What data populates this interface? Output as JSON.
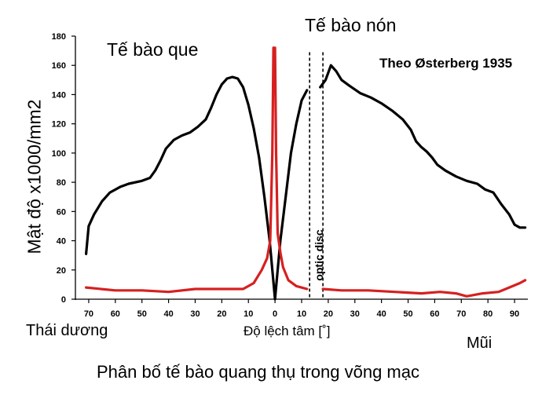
{
  "labels": {
    "rods": "Tế bào que",
    "cones": "Tế bào nón",
    "source": "Theo Østerberg 1935",
    "temporal": "Thái dương",
    "nasal": "Mũi",
    "xlabel": "Độ lệch tâm [˚]",
    "ylabel": "Mật độ x1000/mm2",
    "caption": "Phân bố tế bào quang thụ trong võng mạc",
    "optic_disc": "optic disc"
  },
  "chart_data": {
    "type": "line",
    "xlabel": "Độ lệch tâm [˚]",
    "ylabel": "Mật độ x1000/mm2",
    "xlim": [
      -75,
      95
    ],
    "ylim": [
      0,
      180
    ],
    "x_reversed_left_side": true,
    "x_ticks": [
      -70,
      -60,
      -50,
      -40,
      -30,
      -20,
      -10,
      0,
      10,
      20,
      30,
      40,
      50,
      60,
      70,
      80,
      90
    ],
    "x_tick_labels": [
      "70",
      "60",
      "50",
      "40",
      "30",
      "20",
      "10",
      "0",
      "10",
      "20",
      "30",
      "40",
      "50",
      "60",
      "70",
      "80",
      "90"
    ],
    "y_ticks": [
      0,
      20,
      40,
      60,
      80,
      100,
      120,
      140,
      160,
      180
    ],
    "optic_disc": [
      13,
      18
    ],
    "series": [
      {
        "name": "Tế bào que",
        "color": "#000000",
        "segments": [
          [
            [
              -71,
              31
            ],
            [
              -70,
              50
            ],
            [
              -68,
              58
            ],
            [
              -65,
              67
            ],
            [
              -62,
              73
            ],
            [
              -58,
              77
            ],
            [
              -55,
              79
            ],
            [
              -50,
              81
            ],
            [
              -47,
              83
            ],
            [
              -45,
              88
            ],
            [
              -43,
              95
            ],
            [
              -41,
              103
            ],
            [
              -38,
              109
            ],
            [
              -35,
              112
            ],
            [
              -32,
              114
            ],
            [
              -29,
              118
            ],
            [
              -26,
              123
            ],
            [
              -24,
              131
            ],
            [
              -22,
              140
            ],
            [
              -20,
              147
            ],
            [
              -18,
              151
            ],
            [
              -16,
              152
            ],
            [
              -14,
              151
            ],
            [
              -12,
              145
            ],
            [
              -10,
              133
            ],
            [
              -8,
              117
            ],
            [
              -6,
              97
            ],
            [
              -4,
              70
            ],
            [
              -2,
              40
            ],
            [
              0,
              0
            ],
            [
              2,
              40
            ],
            [
              4,
              70
            ],
            [
              6,
              100
            ],
            [
              8,
              120
            ],
            [
              10,
              136
            ],
            [
              12,
              143
            ]
          ],
          [
            [
              17,
              145
            ],
            [
              19,
              150
            ],
            [
              21,
              160
            ],
            [
              23,
              156
            ],
            [
              25,
              150
            ],
            [
              28,
              146
            ],
            [
              32,
              141
            ],
            [
              36,
              138
            ],
            [
              40,
              134
            ],
            [
              44,
              129
            ],
            [
              48,
              123
            ],
            [
              51,
              116
            ],
            [
              53,
              108
            ],
            [
              55,
              104
            ],
            [
              57,
              101
            ],
            [
              59,
              97
            ],
            [
              61,
              92
            ],
            [
              64,
              88
            ],
            [
              68,
              84
            ],
            [
              72,
              81
            ],
            [
              76,
              79
            ],
            [
              79,
              75
            ],
            [
              82,
              73
            ],
            [
              85,
              65
            ],
            [
              88,
              58
            ],
            [
              90,
              51
            ],
            [
              92,
              49
            ],
            [
              94,
              49
            ]
          ]
        ]
      },
      {
        "name": "Tế bào nón",
        "color": "#d62020",
        "segments": [
          [
            [
              -71,
              8
            ],
            [
              -60,
              6
            ],
            [
              -50,
              6
            ],
            [
              -40,
              5
            ],
            [
              -30,
              7
            ],
            [
              -20,
              7
            ],
            [
              -12,
              7
            ],
            [
              -8,
              11
            ],
            [
              -5,
              20
            ],
            [
              -3,
              28
            ],
            [
              -1.8,
              40
            ],
            [
              -1.0,
              100
            ],
            [
              -0.6,
              172
            ],
            [
              0,
              172
            ],
            [
              0.4,
              100
            ],
            [
              1.0,
              45
            ],
            [
              2,
              32
            ],
            [
              3,
              22
            ],
            [
              5,
              13
            ],
            [
              8,
              9
            ],
            [
              12,
              7
            ]
          ],
          [
            [
              18,
              7
            ],
            [
              25,
              6
            ],
            [
              35,
              6
            ],
            [
              45,
              5
            ],
            [
              55,
              4
            ],
            [
              62,
              5
            ],
            [
              68,
              4
            ],
            [
              72,
              2
            ],
            [
              78,
              4
            ],
            [
              84,
              5
            ],
            [
              88,
              8
            ],
            [
              92,
              11
            ],
            [
              94,
              13
            ]
          ]
        ]
      }
    ],
    "annotations": [
      "Tế bào que",
      "Tế bào nón",
      "Theo Østerberg 1935",
      "optic disc",
      "Thái dương",
      "Mũi"
    ]
  }
}
